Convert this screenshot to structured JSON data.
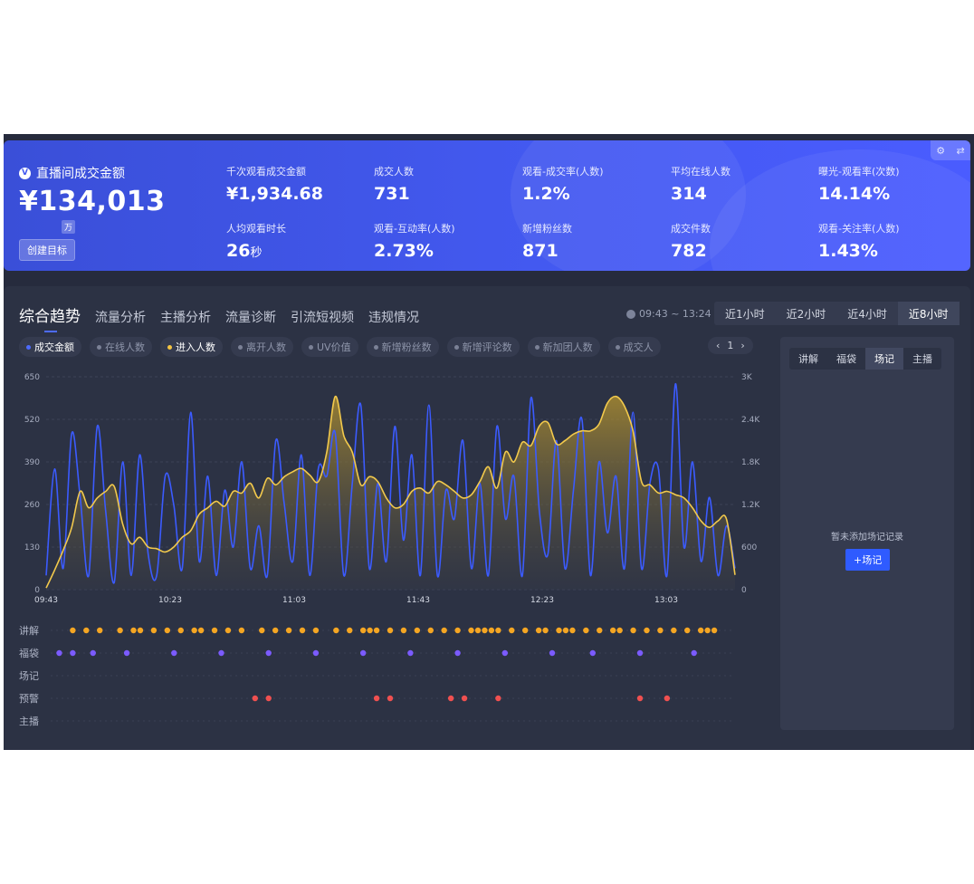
{
  "banner": {
    "gmv_label": "直播间成交金额",
    "gmv_icon": "V",
    "gmv_value": "¥134,013",
    "gmv_unit": "万",
    "goal_button": "创建目标",
    "corner_icons": [
      "⚙",
      "⇄"
    ],
    "metrics": [
      {
        "label": "千次观看成交金额",
        "value": "¥1,934.68"
      },
      {
        "label": "成交人数",
        "value": "731"
      },
      {
        "label": "观看-成交率(人数)",
        "value": "1.2%"
      },
      {
        "label": "平均在线人数",
        "value": "314"
      },
      {
        "label": "曝光-观看率(次数)",
        "value": "14.14%"
      },
      {
        "label": "人均观看时长",
        "value": "26",
        "suffix": "秒"
      },
      {
        "label": "观看-互动率(人数)",
        "value": "2.73%"
      },
      {
        "label": "新增粉丝数",
        "value": "871"
      },
      {
        "label": "成交件数",
        "value": "782"
      },
      {
        "label": "观看-关注率(人数)",
        "value": "1.43%"
      }
    ]
  },
  "tabs": [
    "综合趋势",
    "流量分析",
    "主播分析",
    "流量诊断",
    "引流短视频",
    "违规情况"
  ],
  "time_range": "09:43 ~ 13:24",
  "range_options": [
    "近1小时",
    "近2小时",
    "近4小时",
    "近8小时"
  ],
  "chips": [
    {
      "label": "成交金额",
      "on": true,
      "color": "#4d6bff"
    },
    {
      "label": "在线人数",
      "on": false,
      "color": "#7b8196"
    },
    {
      "label": "进入人数",
      "on": true,
      "color": "#f5c542"
    },
    {
      "label": "离开人数",
      "on": false,
      "color": "#7b8196"
    },
    {
      "label": "UV价值",
      "on": false,
      "color": "#7b8196"
    },
    {
      "label": "新增粉丝数",
      "on": false,
      "color": "#7b8196"
    },
    {
      "label": "新增评论数",
      "on": false,
      "color": "#7b8196"
    },
    {
      "label": "新加团人数",
      "on": false,
      "color": "#7b8196"
    },
    {
      "label": "成交人",
      "on": false,
      "color": "#7b8196"
    }
  ],
  "pager": {
    "prev": "‹",
    "page": "1",
    "next": "›"
  },
  "side_panel": {
    "tabs": [
      "讲解",
      "福袋",
      "场记",
      "主播"
    ],
    "active": "场记",
    "empty_text": "暂未添加场记记录",
    "add_button": "+场记"
  },
  "chart_data": {
    "type": "line",
    "x_start": "09:43",
    "x_end": "13:24",
    "x_ticks": [
      "09:43",
      "10:23",
      "11:03",
      "11:43",
      "12:23",
      "13:03"
    ],
    "left_axis": {
      "ticks": [
        "0",
        "130",
        "260",
        "390",
        "520",
        "650"
      ],
      "ylim": [
        0,
        650
      ]
    },
    "right_axis": {
      "ticks": [
        "0",
        "600",
        "1.2K",
        "1.8K",
        "2.4K",
        "3K"
      ],
      "ylim": [
        0,
        3000
      ]
    },
    "series": [
      {
        "name": "进入人数",
        "axis": "left",
        "color": "#f2c94c",
        "values": [
          5,
          60,
          120,
          190,
          300,
          250,
          280,
          300,
          315,
          200,
          140,
          160,
          130,
          125,
          115,
          130,
          160,
          180,
          230,
          250,
          270,
          255,
          300,
          295,
          325,
          280,
          340,
          320,
          345,
          360,
          370,
          350,
          330,
          420,
          590,
          470,
          420,
          320,
          345,
          330,
          280,
          250,
          260,
          300,
          310,
          295,
          330,
          320,
          300,
          280,
          290,
          330,
          375,
          310,
          420,
          390,
          450,
          440,
          500,
          510,
          445,
          455,
          475,
          485,
          485,
          505,
          570,
          590,
          560,
          485,
          330,
          320,
          295,
          300,
          290,
          280,
          250,
          210,
          190,
          210,
          215,
          45
        ]
      },
      {
        "name": "成交金额",
        "axis": "right",
        "color": "#3b5bff",
        "values": [
          200,
          1700,
          300,
          2200,
          1300,
          200,
          2300,
          1100,
          100,
          1800,
          200,
          1900,
          500,
          200,
          1600,
          1200,
          300,
          2500,
          400,
          1600,
          200,
          1400,
          600,
          1800,
          300,
          900,
          200,
          2100,
          1200,
          400,
          1900,
          200,
          1700,
          1600,
          2200,
          200,
          1500,
          2600,
          300,
          1500,
          400,
          2300,
          700,
          1900,
          200,
          2600,
          200,
          1400,
          1000,
          2100,
          300,
          1500,
          200,
          2300,
          1000,
          1600,
          200,
          2700,
          1100,
          500,
          2100,
          300,
          1400,
          2400,
          200,
          1800,
          800,
          1600,
          300,
          2500,
          300,
          1500,
          1700,
          200,
          2900,
          600,
          1800,
          400,
          1300,
          200,
          900,
          300
        ]
      }
    ],
    "event_rows": [
      {
        "label": "讲解",
        "color": "#f5a623",
        "marks": [
          0.03,
          0.05,
          0.07,
          0.1,
          0.12,
          0.13,
          0.15,
          0.17,
          0.19,
          0.21,
          0.22,
          0.24,
          0.26,
          0.28,
          0.31,
          0.33,
          0.35,
          0.37,
          0.39,
          0.42,
          0.44,
          0.46,
          0.47,
          0.48,
          0.5,
          0.52,
          0.54,
          0.56,
          0.58,
          0.6,
          0.62,
          0.63,
          0.64,
          0.65,
          0.66,
          0.68,
          0.7,
          0.72,
          0.73,
          0.75,
          0.76,
          0.77,
          0.79,
          0.81,
          0.83,
          0.84,
          0.86,
          0.88,
          0.9,
          0.92,
          0.94,
          0.96,
          0.97,
          0.98
        ]
      },
      {
        "label": "福袋",
        "color": "#7b5bff",
        "marks": [
          0.01,
          0.03,
          0.06,
          0.11,
          0.18,
          0.25,
          0.32,
          0.39,
          0.46,
          0.53,
          0.6,
          0.67,
          0.74,
          0.8,
          0.87,
          0.95
        ]
      },
      {
        "label": "场记",
        "color": "#ffffff",
        "marks": []
      },
      {
        "label": "预警",
        "color": "#f05050",
        "marks": [
          0.3,
          0.32,
          0.48,
          0.5,
          0.59,
          0.61,
          0.66,
          0.87,
          0.91
        ]
      },
      {
        "label": "主播",
        "color": "#ffffff",
        "marks": []
      }
    ]
  }
}
